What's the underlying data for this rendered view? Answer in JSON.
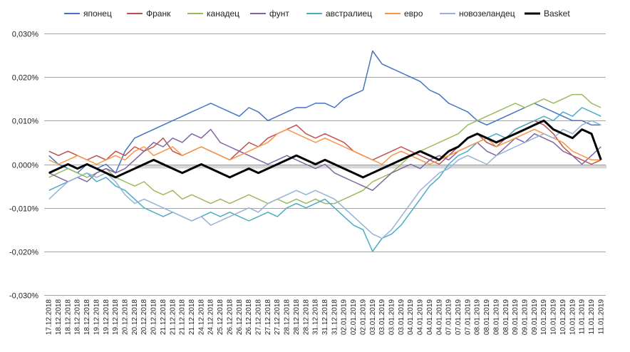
{
  "chart_data": {
    "type": "line",
    "title": "",
    "xlabel": "",
    "ylabel": "",
    "ylim": [
      -0.03,
      0.03
    ],
    "y_ticks": [
      "0,030%",
      "0,020%",
      "0,010%",
      "0,000%",
      "-0,010%",
      "-0,020%",
      "-0,030%"
    ],
    "y_tick_values": [
      0.03,
      0.02,
      0.01,
      0.0,
      -0.01,
      -0.02,
      -0.03
    ],
    "grid": "horizontal",
    "legend_position": "top",
    "categories": [
      "17.12.2018",
      "18.12.2018",
      "18.12.2018",
      "18.12.2018",
      "18.12.2018",
      "19.12.2018",
      "19.12.2018",
      "19.12.2018",
      "20.12.2018",
      "20.12.2018",
      "20.12.2018",
      "20.12.2018",
      "21.12.2018",
      "21.12.2018",
      "21.12.2018",
      "21.12.2018",
      "24.12.2018",
      "24.12.2018",
      "25.12.2018",
      "26.12.2018",
      "26.12.2018",
      "26.12.2018",
      "27.12.2018",
      "27.12.2018",
      "27.12.2018",
      "28.12.2018",
      "28.12.2018",
      "28.12.2018",
      "31.12.2018",
      "31.12.2018",
      "31.12.2018",
      "02.01.2019",
      "02.01.2019",
      "02.01.2019",
      "03.01.2019",
      "03.01.2019",
      "03.01.2019",
      "03.01.2019",
      "04.01.2019",
      "04.01.2019",
      "04.01.2019",
      "04.01.2019",
      "07.01.2019",
      "07.01.2019",
      "07.01.2019",
      "08.01.2019",
      "08.01.2019",
      "08.01.2019",
      "08.01.2019",
      "09.01.2019",
      "09.01.2019",
      "09.01.2019",
      "10.01.2019",
      "10.01.2019",
      "10.01.2019",
      "10.01.2019",
      "11.01.2019",
      "11.01.2019",
      "11.01.2019"
    ],
    "series": [
      {
        "name": "японец",
        "color": "#4472c4",
        "values": [
          0.002,
          0.0,
          -0.001,
          -0.002,
          0.0,
          -0.001,
          0.0,
          -0.002,
          0.003,
          0.006,
          0.007,
          0.008,
          0.009,
          0.01,
          0.011,
          0.012,
          0.013,
          0.014,
          0.013,
          0.012,
          0.011,
          0.013,
          0.012,
          0.01,
          0.011,
          0.012,
          0.013,
          0.013,
          0.014,
          0.014,
          0.013,
          0.015,
          0.016,
          0.017,
          0.026,
          0.023,
          0.022,
          0.021,
          0.02,
          0.019,
          0.017,
          0.016,
          0.014,
          0.013,
          0.012,
          0.01,
          0.009,
          0.01,
          0.011,
          0.012,
          0.013,
          0.014,
          0.013,
          0.012,
          0.011,
          0.01,
          0.01,
          0.009,
          0.009
        ]
      },
      {
        "name": "Франк",
        "color": "#c0504d",
        "values": [
          0.003,
          0.002,
          0.003,
          0.002,
          0.001,
          0.002,
          0.001,
          0.003,
          0.002,
          0.004,
          0.003,
          0.004,
          0.006,
          0.003,
          0.002,
          0.003,
          0.004,
          0.003,
          0.002,
          0.001,
          0.003,
          0.005,
          0.004,
          0.006,
          0.007,
          0.008,
          0.009,
          0.007,
          0.006,
          0.007,
          0.006,
          0.005,
          0.003,
          0.002,
          0.001,
          0.002,
          0.003,
          0.004,
          0.003,
          0.002,
          0.001,
          0.0,
          0.002,
          0.004,
          0.006,
          0.007,
          0.005,
          0.004,
          0.006,
          0.008,
          0.009,
          0.01,
          0.009,
          0.007,
          0.004,
          0.002,
          0.001,
          0.0,
          0.001
        ]
      },
      {
        "name": "канадец",
        "color": "#9bbb59",
        "values": [
          -0.003,
          -0.002,
          -0.001,
          -0.002,
          -0.003,
          -0.002,
          -0.001,
          -0.003,
          -0.004,
          -0.005,
          -0.004,
          -0.006,
          -0.007,
          -0.006,
          -0.008,
          -0.007,
          -0.008,
          -0.009,
          -0.008,
          -0.009,
          -0.008,
          -0.007,
          -0.008,
          -0.009,
          -0.008,
          -0.009,
          -0.008,
          -0.009,
          -0.008,
          -0.009,
          -0.009,
          -0.008,
          -0.007,
          -0.006,
          -0.004,
          -0.003,
          -0.002,
          0.0,
          0.002,
          0.003,
          0.004,
          0.005,
          0.006,
          0.007,
          0.009,
          0.01,
          0.011,
          0.012,
          0.013,
          0.014,
          0.013,
          0.014,
          0.015,
          0.014,
          0.015,
          0.016,
          0.016,
          0.014,
          0.013
        ]
      },
      {
        "name": "фунт",
        "color": "#8064a2",
        "values": [
          -0.002,
          -0.003,
          -0.004,
          -0.003,
          -0.004,
          -0.002,
          -0.001,
          -0.002,
          -0.001,
          0.001,
          0.003,
          0.005,
          0.004,
          0.006,
          0.005,
          0.007,
          0.006,
          0.008,
          0.005,
          0.004,
          0.003,
          0.002,
          0.001,
          0.0,
          0.001,
          0.002,
          0.001,
          0.0,
          -0.001,
          0.0,
          -0.002,
          -0.003,
          -0.004,
          -0.005,
          -0.006,
          -0.004,
          -0.002,
          -0.001,
          0.0,
          -0.001,
          0.001,
          0.002,
          0.001,
          0.003,
          0.004,
          0.005,
          0.003,
          0.002,
          0.004,
          0.006,
          0.005,
          0.007,
          0.006,
          0.005,
          0.003,
          0.002,
          0.0,
          0.002,
          0.004
        ]
      },
      {
        "name": "австралиец",
        "color": "#4bacc6",
        "values": [
          -0.006,
          -0.005,
          -0.004,
          -0.003,
          -0.002,
          -0.004,
          -0.003,
          -0.005,
          -0.006,
          -0.008,
          -0.01,
          -0.011,
          -0.012,
          -0.011,
          -0.012,
          -0.013,
          -0.012,
          -0.011,
          -0.012,
          -0.011,
          -0.012,
          -0.013,
          -0.012,
          -0.011,
          -0.012,
          -0.01,
          -0.009,
          -0.01,
          -0.009,
          -0.008,
          -0.01,
          -0.012,
          -0.014,
          -0.015,
          -0.02,
          -0.017,
          -0.016,
          -0.014,
          -0.011,
          -0.008,
          -0.005,
          -0.003,
          0.0,
          0.002,
          0.003,
          0.005,
          0.006,
          0.007,
          0.006,
          0.008,
          0.009,
          0.01,
          0.011,
          0.01,
          0.012,
          0.011,
          0.013,
          0.012,
          0.011
        ]
      },
      {
        "name": "евро",
        "color": "#f79646",
        "values": [
          0.001,
          0.0,
          0.001,
          0.002,
          0.001,
          0.0,
          0.001,
          0.002,
          0.001,
          0.003,
          0.004,
          0.002,
          0.003,
          0.004,
          0.002,
          0.003,
          0.004,
          0.003,
          0.002,
          0.001,
          0.002,
          0.003,
          0.004,
          0.005,
          0.007,
          0.008,
          0.007,
          0.006,
          0.005,
          0.006,
          0.005,
          0.004,
          0.003,
          0.002,
          0.001,
          0.0,
          0.002,
          0.003,
          0.002,
          0.001,
          0.0,
          0.001,
          0.002,
          0.003,
          0.004,
          0.005,
          0.006,
          0.004,
          0.005,
          0.006,
          0.007,
          0.008,
          0.007,
          0.006,
          0.005,
          0.003,
          0.002,
          0.001,
          0.001
        ]
      },
      {
        "name": "новозеландец",
        "color": "#95b3d7",
        "values": [
          -0.008,
          -0.006,
          -0.004,
          -0.003,
          -0.002,
          -0.003,
          -0.002,
          -0.004,
          -0.007,
          -0.009,
          -0.008,
          -0.009,
          -0.01,
          -0.011,
          -0.012,
          -0.013,
          -0.012,
          -0.014,
          -0.013,
          -0.012,
          -0.011,
          -0.01,
          -0.011,
          -0.009,
          -0.008,
          -0.007,
          -0.006,
          -0.007,
          -0.006,
          -0.007,
          -0.008,
          -0.01,
          -0.012,
          -0.014,
          -0.016,
          -0.017,
          -0.015,
          -0.012,
          -0.009,
          -0.006,
          -0.004,
          -0.002,
          -0.001,
          0.001,
          0.002,
          0.001,
          0.0,
          0.002,
          0.003,
          0.004,
          0.005,
          0.006,
          0.007,
          0.006,
          0.008,
          0.007,
          0.009,
          0.01,
          0.009
        ]
      },
      {
        "name": "Basket",
        "color": "#000000",
        "width": 3,
        "values": [
          -0.002,
          -0.001,
          0.0,
          -0.001,
          0.0,
          -0.001,
          -0.002,
          -0.003,
          -0.002,
          -0.001,
          0.0,
          0.001,
          0.0,
          -0.001,
          -0.002,
          -0.001,
          0.0,
          -0.001,
          -0.002,
          -0.003,
          -0.002,
          -0.001,
          -0.002,
          -0.001,
          0.0,
          0.001,
          0.002,
          0.001,
          0.0,
          0.001,
          0.0,
          -0.001,
          -0.002,
          -0.003,
          -0.002,
          -0.001,
          0.0,
          0.001,
          0.002,
          0.003,
          0.002,
          0.001,
          0.003,
          0.004,
          0.006,
          0.007,
          0.006,
          0.005,
          0.006,
          0.007,
          0.008,
          0.009,
          0.01,
          0.008,
          0.007,
          0.006,
          0.008,
          0.007,
          0.001
        ]
      }
    ]
  }
}
